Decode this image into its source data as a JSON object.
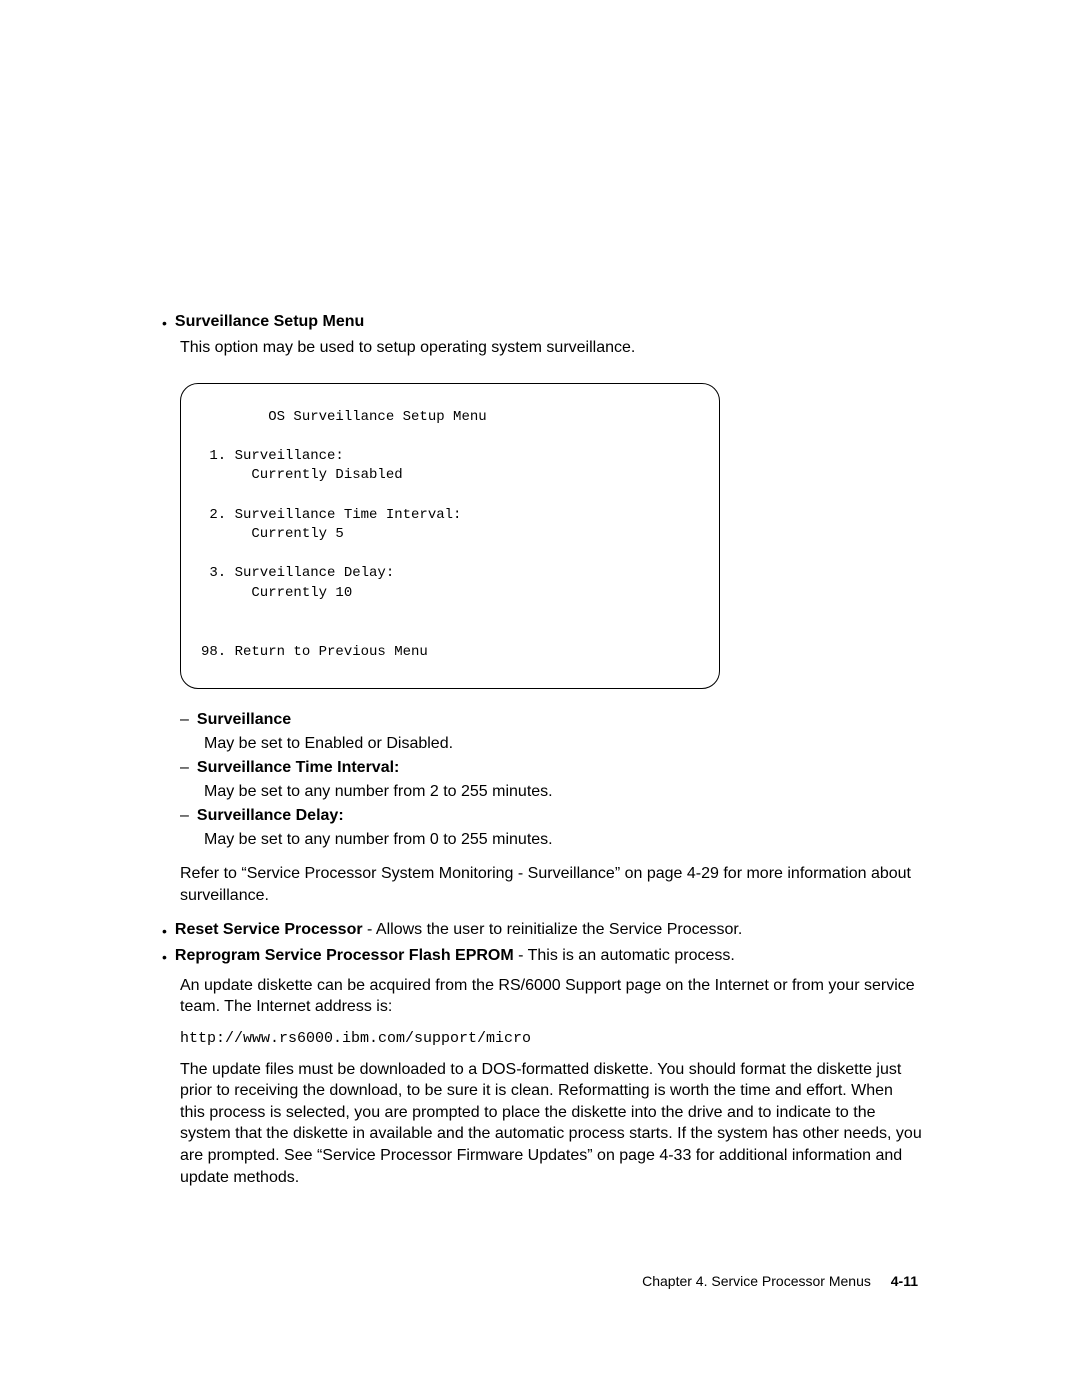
{
  "surveillance_menu": {
    "heading": "Surveillance Setup Menu",
    "description": "This option may be used to setup operating system surveillance.",
    "menu_text": "        OS Surveillance Setup Menu\n\n 1. Surveillance:\n      Currently Disabled\n\n 2. Surveillance Time Interval:\n      Currently 5\n\n 3. Surveillance Delay:\n      Currently 10\n\n\n98. Return to Previous Menu",
    "sub_items": [
      {
        "title": "Surveillance",
        "desc": "May be set to Enabled or Disabled."
      },
      {
        "title": "Surveillance Time Interval:",
        "desc": "May be set to any number from 2 to 255 minutes."
      },
      {
        "title": "Surveillance Delay:",
        "desc": "May be set to any number from 0 to 255 minutes."
      }
    ],
    "refer": "Refer to “Service Processor System Monitoring - Surveillance” on page 4-29 for more information about surveillance."
  },
  "reset_sp": {
    "title": "Reset Service Processor",
    "desc": " - Allows the user to reinitialize the Service Processor."
  },
  "reprogram": {
    "title": "Reprogram Service Processor Flash EPROM",
    "desc": " - This is an automatic process.",
    "para1": "An update diskette can be acquired from the RS/6000 Support page on the Internet or from your service team.  The Internet address is:",
    "url": "http://www.rs6000.ibm.com/support/micro",
    "para2": "The update files must be downloaded to a DOS-formatted diskette. You should format the diskette just prior to receiving the download, to be sure it is clean. Reformatting is worth the time and effort.  When this process is selected, you are prompted to place the diskette into the drive and to indicate to the system that the diskette in available and the automatic process starts. If the system has other needs, you are prompted.  See “Service Processor Firmware Updates” on page 4-33 for additional information and update methods."
  },
  "footer": {
    "chapter": "Chapter 4.  Service Processor Menus",
    "page": "4-11"
  }
}
